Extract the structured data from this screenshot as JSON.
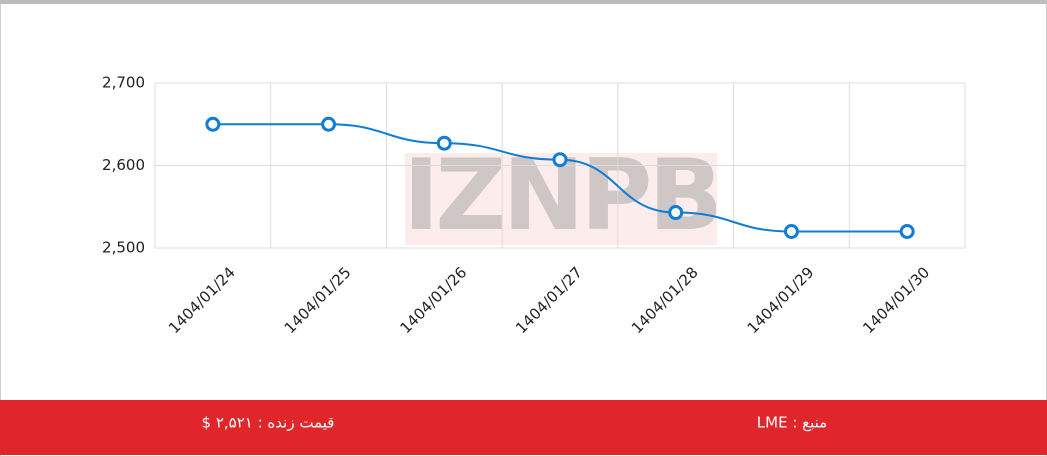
{
  "chart_data": {
    "type": "line",
    "watermark": "IZNPB",
    "categories": [
      "1404/01/24",
      "1404/01/25",
      "1404/01/26",
      "1404/01/27",
      "1404/01/28",
      "1404/01/29",
      "1404/01/30"
    ],
    "values": [
      2650,
      2650,
      2627,
      2607,
      2543,
      2520,
      2520
    ],
    "color": "#0f7dd6",
    "ylim": [
      2500,
      2700
    ],
    "yticks": [
      {
        "value": 2500,
        "label": "2,500"
      },
      {
        "value": 2600,
        "label": "2,600"
      },
      {
        "value": 2700,
        "label": "2,700"
      }
    ],
    "grid": true
  },
  "footer": {
    "price": "قیمت زنده : ۲,۵۲۱ $",
    "source": "منبع : LME"
  }
}
